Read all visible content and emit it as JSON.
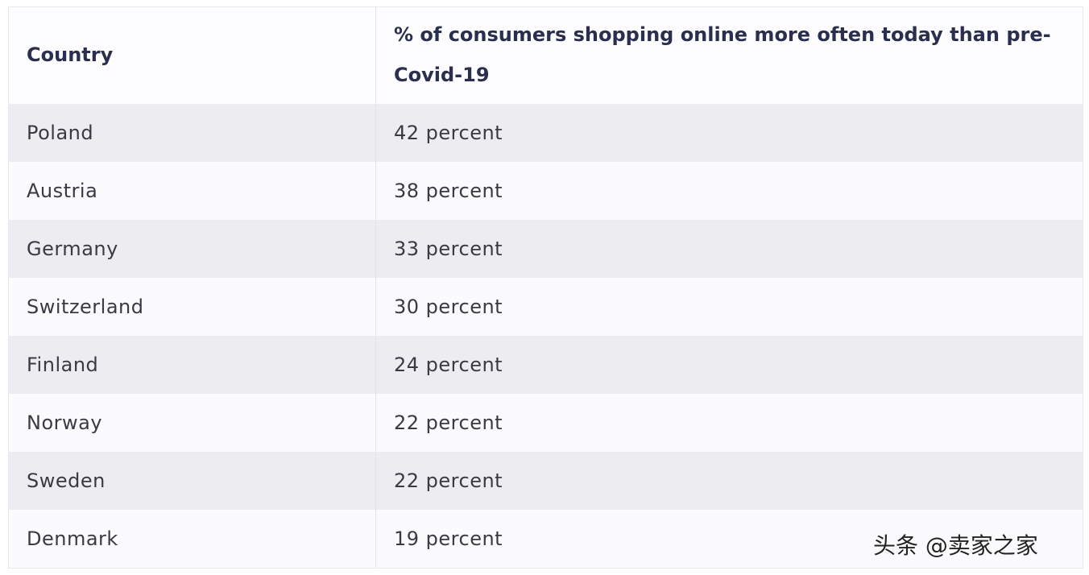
{
  "table": {
    "header": [
      "Country",
      "% of consumers shopping online more often today than pre-Covid-19"
    ],
    "rows": [
      [
        "Poland",
        "42 percent"
      ],
      [
        "Austria",
        "38 percent"
      ],
      [
        "Germany",
        "33 percent"
      ],
      [
        "Switzerland",
        "30 percent"
      ],
      [
        "Finland",
        "24 percent"
      ],
      [
        "Norway",
        "22 percent"
      ],
      [
        "Sweden",
        "22 percent"
      ],
      [
        "Denmark",
        "19 percent"
      ]
    ]
  },
  "watermark": "头条 @卖家之家"
}
